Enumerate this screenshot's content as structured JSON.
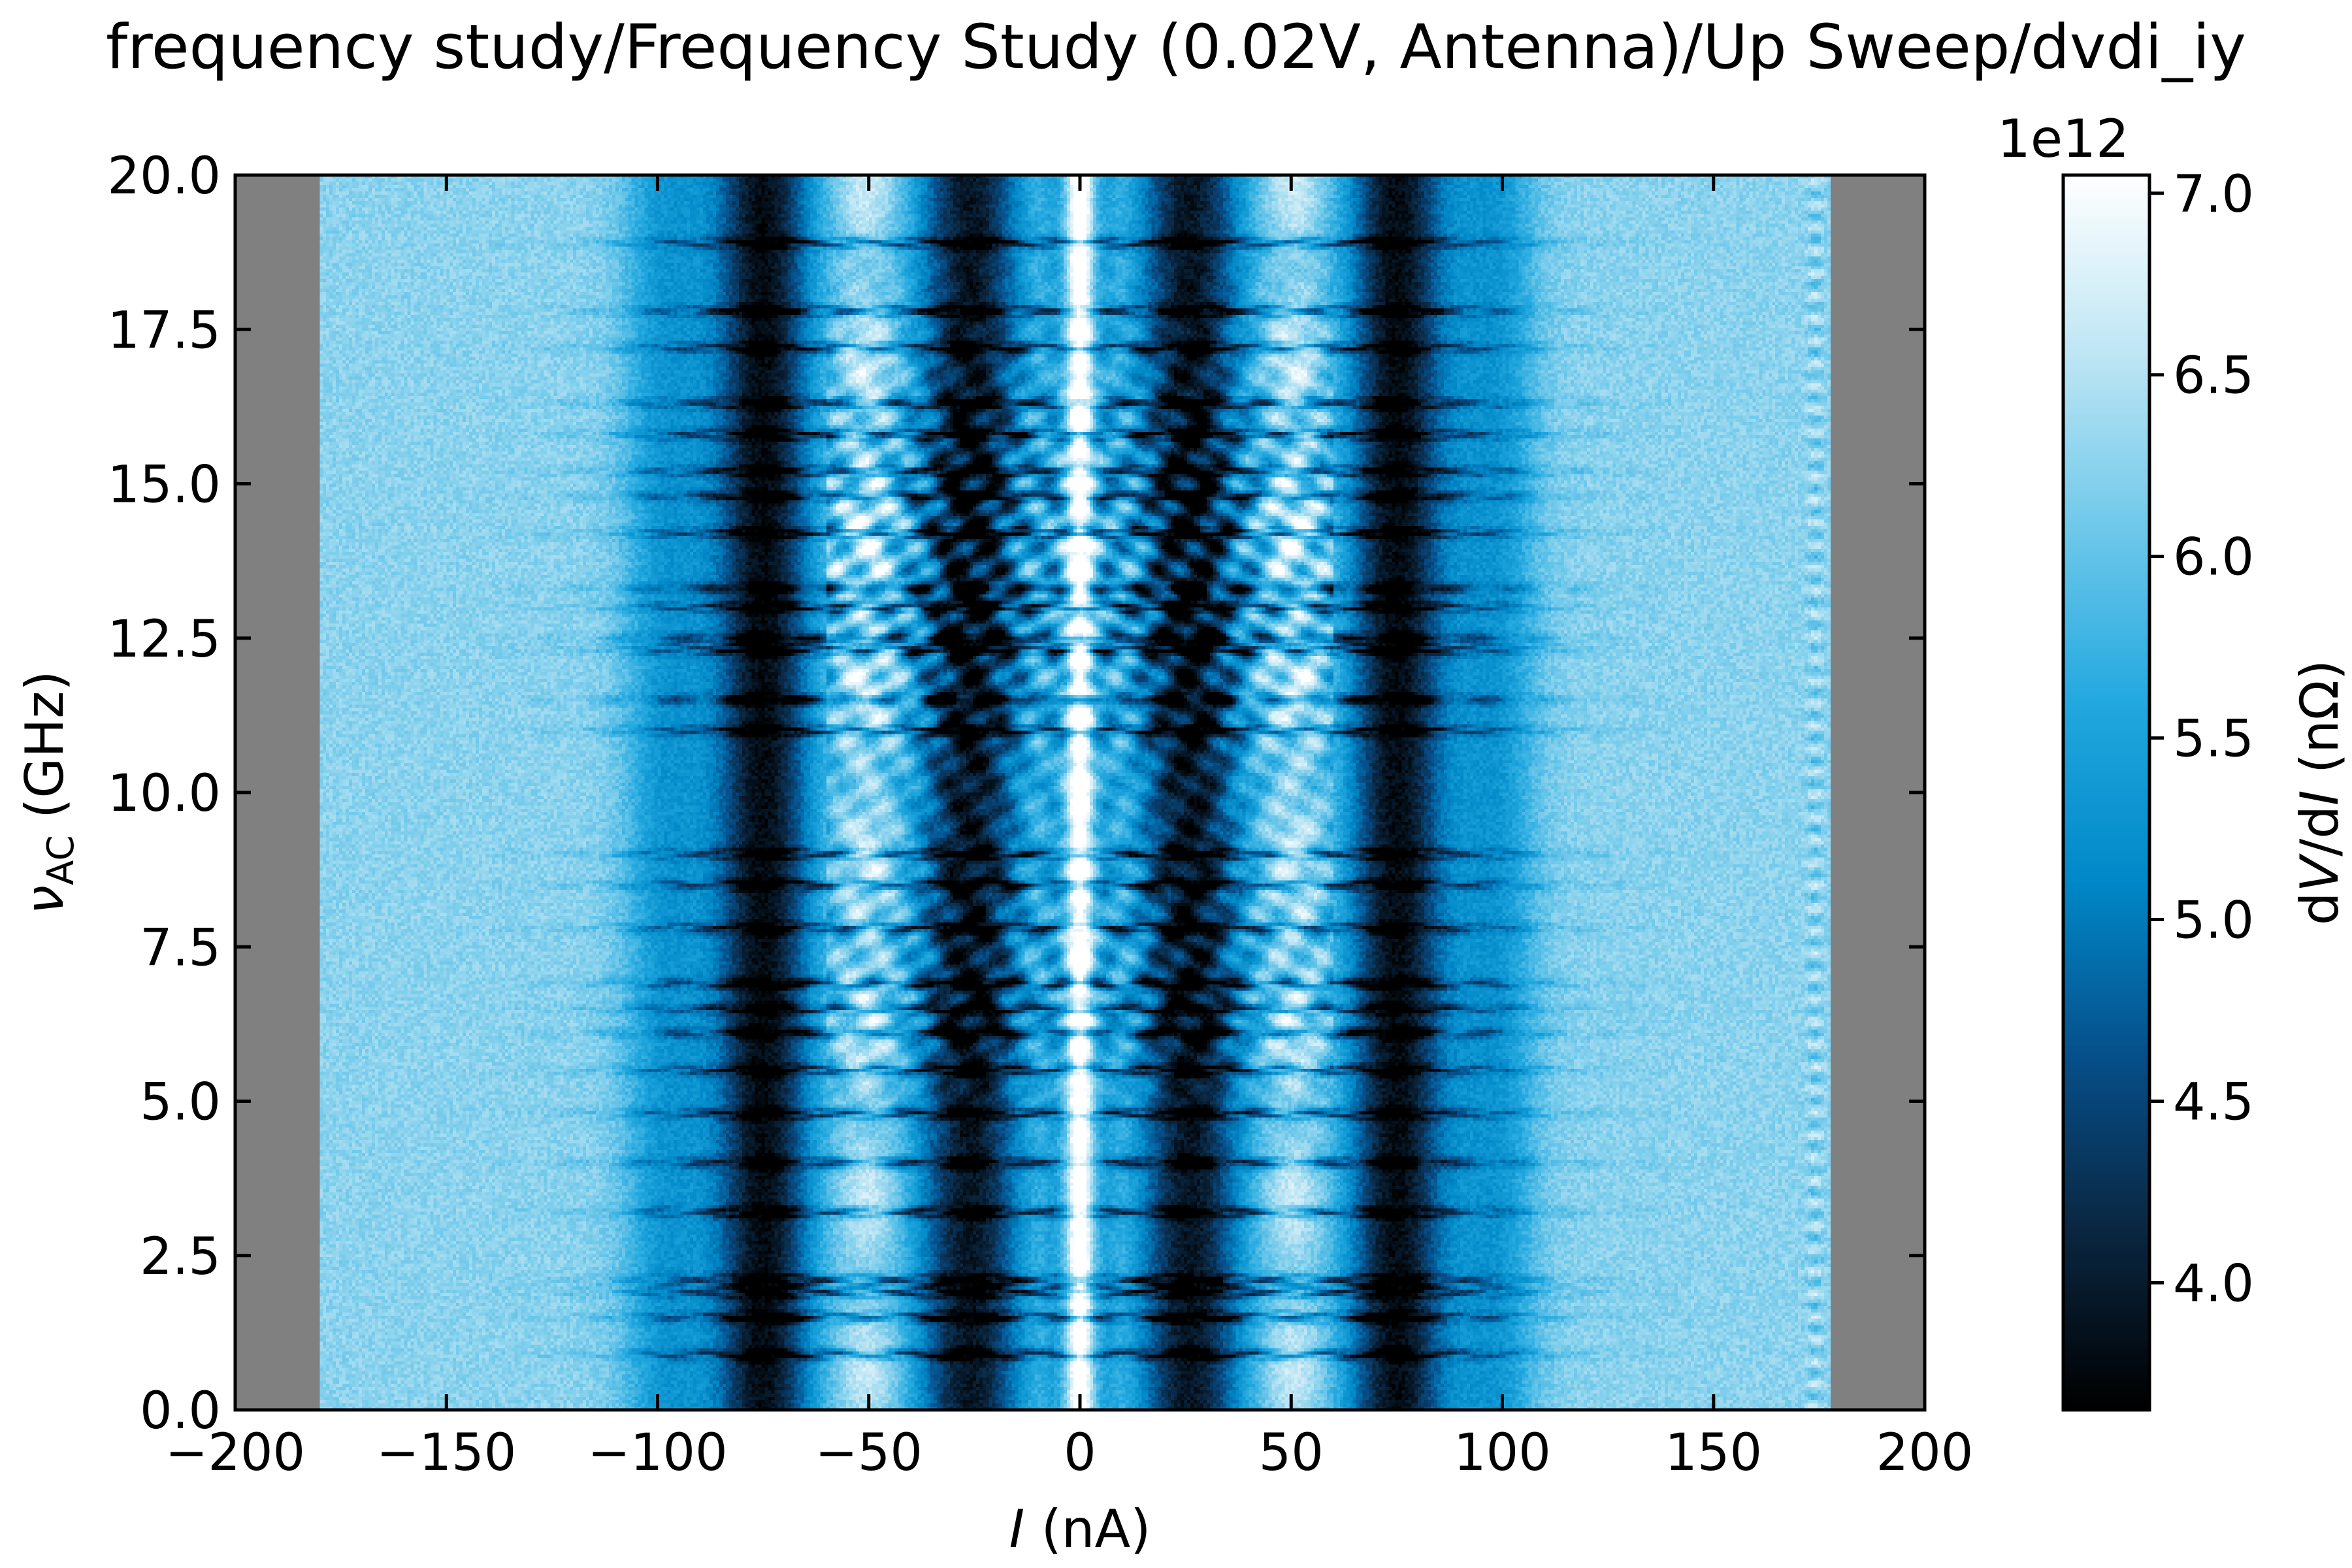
{
  "title": "frequency study/Frequency Study (0.02V, Antenna)/Up Sweep/dvdi_iy",
  "chart_data": {
    "type": "heatmap",
    "title": "frequency study/Frequency Study (0.02V, Antenna)/Up Sweep/dvdi_iy",
    "xlabel": {
      "italic": "I",
      "rest": " (nA)"
    },
    "ylabel": {
      "symbol": "ν",
      "subscript": "AC",
      "rest": " (GHz)"
    },
    "xlim": [
      -200,
      200
    ],
    "ylim": [
      0,
      20
    ],
    "x_ticks": [
      -200,
      -150,
      -100,
      -50,
      0,
      50,
      100,
      150,
      200
    ],
    "x_tick_labels": [
      "−200",
      "−150",
      "−100",
      "−50",
      "0",
      "50",
      "100",
      "150",
      "200"
    ],
    "y_ticks": [
      0,
      2.5,
      5,
      7.5,
      10,
      12.5,
      15,
      17.5,
      20
    ],
    "y_tick_labels": [
      "0.0",
      "2.5",
      "5.0",
      "7.5",
      "10.0",
      "12.5",
      "15.0",
      "17.5",
      "20.0"
    ],
    "data_x_range": [
      -180,
      178
    ],
    "missing_data_color": "#808080",
    "colorbar": {
      "label_parts": [
        "d",
        "V",
        "/d",
        "I",
        " (nΩ)"
      ],
      "offset_label": "1e12",
      "range": [
        3.65,
        7.05
      ],
      "ticks": [
        4.0,
        4.5,
        5.0,
        5.5,
        6.0,
        6.5,
        7.0
      ],
      "tick_labels": [
        "4.0",
        "4.5",
        "5.0",
        "5.5",
        "6.0",
        "6.5",
        "7.0"
      ],
      "colormap": "blue-to-white",
      "colormap_stops": [
        "#000000",
        "#0a2640",
        "#064f8a",
        "#0088c8",
        "#22a8df",
        "#6fc8ea",
        "#bfe6f4",
        "#ffffff"
      ]
    },
    "background_level": 6.25,
    "features": {
      "dark_bands_nA": [
        -75,
        75,
        -28,
        28
      ],
      "dark_band_level": 3.8,
      "white_center_nA": 0,
      "resonance_lines_GHz": [
        0.9,
        1.5,
        1.9,
        2.1,
        3.2,
        4.0,
        4.8,
        5.5,
        6.1,
        6.5,
        6.9,
        7.8,
        8.5,
        9.0,
        11.0,
        11.5,
        12.3,
        12.5,
        13.0,
        13.3,
        14.2,
        14.8,
        15.2,
        15.8,
        16.3,
        17.2,
        17.8,
        18.9
      ]
    }
  }
}
